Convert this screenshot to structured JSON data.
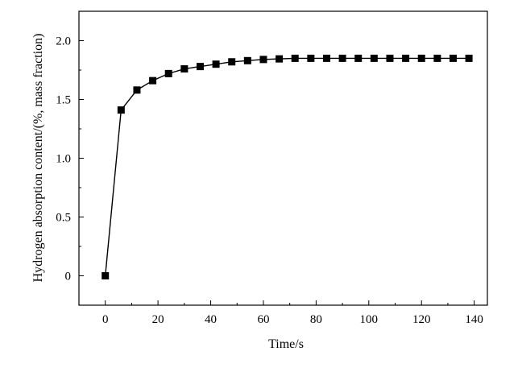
{
  "chart_data": {
    "type": "line",
    "title": "",
    "xlabel": "Time/s",
    "ylabel": "Hydrogen absorption content/(%, mass fraction)",
    "xlim": [
      -10,
      145
    ],
    "ylim": [
      -0.25,
      2.25
    ],
    "xticks": [
      0,
      20,
      40,
      60,
      80,
      100,
      120,
      140
    ],
    "yticks": [
      0,
      0.5,
      1.0,
      1.5,
      2.0
    ],
    "xtick_labels": [
      "0",
      "20",
      "40",
      "60",
      "80",
      "100",
      "120",
      "140"
    ],
    "ytick_labels": [
      "0",
      "0.5",
      "1.0",
      "1.5",
      "2.0"
    ],
    "grid": false,
    "legend": "none",
    "series": [
      {
        "marker": "square",
        "color": "#000000",
        "x": [
          0,
          6,
          12,
          18,
          24,
          30,
          36,
          42,
          48,
          54,
          60,
          66,
          72,
          78,
          84,
          90,
          96,
          102,
          108,
          114,
          120,
          126,
          132,
          138
        ],
        "y": [
          0,
          1.41,
          1.58,
          1.66,
          1.72,
          1.76,
          1.78,
          1.8,
          1.82,
          1.83,
          1.84,
          1.845,
          1.85,
          1.85,
          1.85,
          1.85,
          1.85,
          1.85,
          1.85,
          1.85,
          1.85,
          1.85,
          1.85,
          1.85
        ]
      }
    ]
  }
}
